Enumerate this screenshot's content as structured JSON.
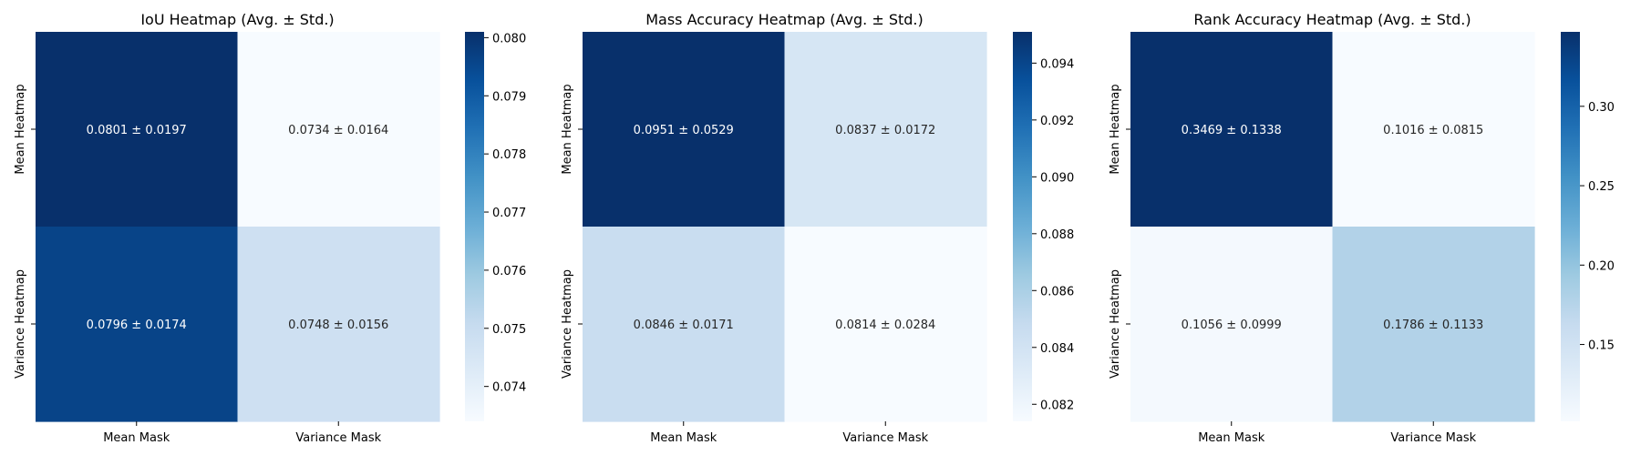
{
  "chart_data": [
    {
      "type": "heatmap",
      "title": "IoU Heatmap (Avg. ± Std.)",
      "x_categories": [
        "Mean Mask",
        "Variance Mask"
      ],
      "y_categories": [
        "Mean Heatmap",
        "Variance Heatmap"
      ],
      "avg": [
        [
          0.0801,
          0.0734
        ],
        [
          0.0796,
          0.0748
        ]
      ],
      "std": [
        [
          0.0197,
          0.0164
        ],
        [
          0.0174,
          0.0156
        ]
      ],
      "cell_labels": [
        [
          "0.0801 ± 0.0197",
          "0.0734 ± 0.0164"
        ],
        [
          "0.0796 ± 0.0174",
          "0.0748 ± 0.0156"
        ]
      ],
      "colormap": "Blues",
      "colorbar": {
        "range": [
          0.0734,
          0.0801
        ],
        "ticks": [
          0.074,
          0.075,
          0.076,
          0.077,
          0.078,
          0.079,
          0.08
        ],
        "tick_labels": [
          "0.074",
          "0.075",
          "0.076",
          "0.077",
          "0.078",
          "0.079",
          "0.080"
        ]
      }
    },
    {
      "type": "heatmap",
      "title": "Mass Accuracy Heatmap (Avg. ± Std.)",
      "x_categories": [
        "Mean Mask",
        "Variance Mask"
      ],
      "y_categories": [
        "Mean Heatmap",
        "Variance Heatmap"
      ],
      "avg": [
        [
          0.0951,
          0.0837
        ],
        [
          0.0846,
          0.0814
        ]
      ],
      "std": [
        [
          0.0529,
          0.0172
        ],
        [
          0.0171,
          0.0284
        ]
      ],
      "cell_labels": [
        [
          "0.0951 ± 0.0529",
          "0.0837 ± 0.0172"
        ],
        [
          "0.0846 ± 0.0171",
          "0.0814 ± 0.0284"
        ]
      ],
      "colormap": "Blues",
      "colorbar": {
        "range": [
          0.0814,
          0.0951
        ],
        "ticks": [
          0.082,
          0.084,
          0.086,
          0.088,
          0.09,
          0.092,
          0.094
        ],
        "tick_labels": [
          "0.082",
          "0.084",
          "0.086",
          "0.088",
          "0.090",
          "0.092",
          "0.094"
        ]
      }
    },
    {
      "type": "heatmap",
      "title": "Rank Accuracy Heatmap (Avg. ± Std.)",
      "x_categories": [
        "Mean Mask",
        "Variance Mask"
      ],
      "y_categories": [
        "Mean Heatmap",
        "Variance Heatmap"
      ],
      "avg": [
        [
          0.3469,
          0.1016
        ],
        [
          0.1056,
          0.1786
        ]
      ],
      "std": [
        [
          0.1338,
          0.0815
        ],
        [
          0.0999,
          0.1133
        ]
      ],
      "cell_labels": [
        [
          "0.3469 ± 0.1338",
          "0.1016 ± 0.0815"
        ],
        [
          "0.1056 ± 0.0999",
          "0.1786 ± 0.1133"
        ]
      ],
      "colormap": "Blues",
      "colorbar": {
        "range": [
          0.1016,
          0.3469
        ],
        "ticks": [
          0.15,
          0.2,
          0.25,
          0.3
        ],
        "tick_labels": [
          "0.15",
          "0.20",
          "0.25",
          "0.30"
        ]
      }
    }
  ]
}
